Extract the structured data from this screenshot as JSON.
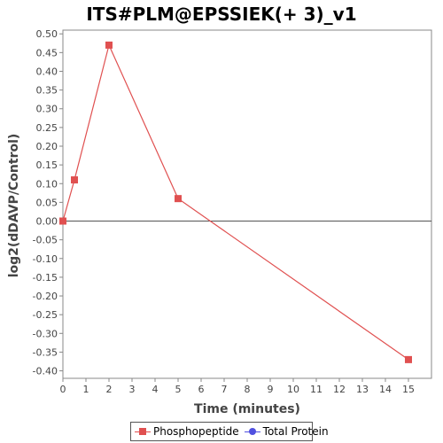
{
  "chart_data": {
    "type": "line",
    "title": "ITS#PLM@EPSSIEK(+ 3)_v1",
    "xlabel": "Time (minutes)",
    "ylabel": "log2(dDAVP/Control)",
    "xlim": [
      0,
      16
    ],
    "ylim": [
      -0.42,
      0.51
    ],
    "x_ticks": [
      "0",
      "1",
      "2",
      "3",
      "4",
      "5",
      "6",
      "7",
      "8",
      "9",
      "10",
      "11",
      "12",
      "13",
      "14",
      "15"
    ],
    "y_ticks": [
      "0.50",
      "0.45",
      "0.40",
      "0.35",
      "0.30",
      "0.25",
      "0.20",
      "0.15",
      "0.10",
      "0.05",
      "0.00",
      "-0.05",
      "-0.10",
      "-0.15",
      "-0.20",
      "-0.25",
      "-0.30",
      "-0.35",
      "-0.40"
    ],
    "grid": false,
    "zero_line": true,
    "legend_position": "bottom",
    "series": [
      {
        "name": "Phosphopeptide",
        "color": "#e05050",
        "marker": "square",
        "x": [
          0,
          0.5,
          2,
          5,
          15
        ],
        "y": [
          0.0,
          0.11,
          0.47,
          0.06,
          -0.37
        ]
      },
      {
        "name": "Total Protein",
        "color": "#5050e0",
        "marker": "circle",
        "x": [],
        "y": []
      }
    ]
  }
}
